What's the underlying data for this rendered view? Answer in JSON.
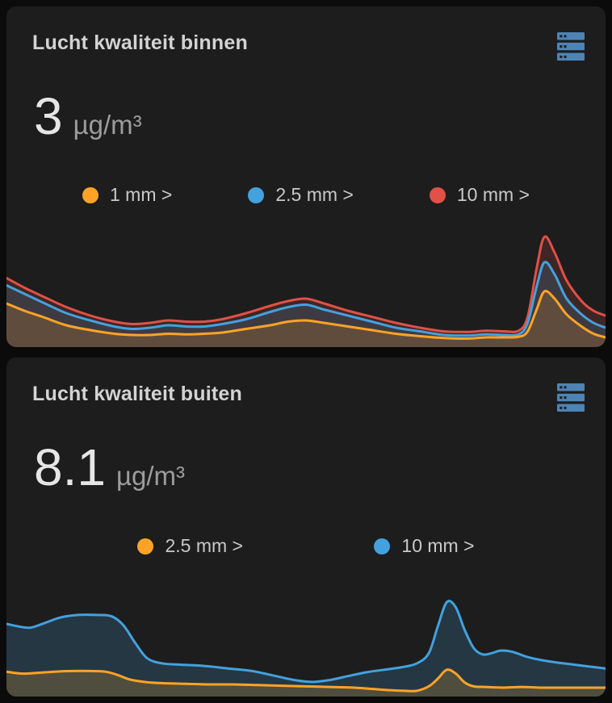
{
  "page": {
    "background": "#0b0b0b",
    "card_background": "#1d1d1d"
  },
  "cards": [
    {
      "title": "Lucht kwaliteit binnen",
      "icon": "server-icon",
      "icon_color": "#4d84b5",
      "value": "3",
      "unit": "µg/m³",
      "legend": [
        {
          "label": "1 mm >",
          "color": "#ffa327"
        },
        {
          "label": "2.5 mm >",
          "color": "#43a1de"
        },
        {
          "label": "10 mm >",
          "color": "#e05146"
        }
      ]
    },
    {
      "title": "Lucht kwaliteit buiten",
      "icon": "server-icon",
      "icon_color": "#4d84b5",
      "value": "8.1",
      "unit": "µg/m³",
      "legend": [
        {
          "label": "2.5 mm >",
          "color": "#ffa327"
        },
        {
          "label": "10 mm >",
          "color": "#43a1de"
        }
      ]
    }
  ],
  "chart_data": [
    {
      "type": "area",
      "title": "Lucht kwaliteit binnen",
      "xlabel": "",
      "ylabel": "",
      "x_unit": "percent of chart width (time axis, unlabeled)",
      "y_unit": "percent of chart height (no axis labels shown)",
      "ylim": [
        0,
        100
      ],
      "grid": false,
      "legend_position": "top",
      "legend_entries": [
        "1 mm >",
        "2.5 mm >",
        "10 mm >"
      ],
      "series": [
        {
          "name": "10 mm",
          "color": "#e05146",
          "fill_opacity": 0.17,
          "values": [
            [
              0,
              57
            ],
            [
              3,
              49
            ],
            [
              6,
              42
            ],
            [
              10,
              33
            ],
            [
              14,
              26
            ],
            [
              18,
              21
            ],
            [
              21,
              19
            ],
            [
              24,
              20
            ],
            [
              27,
              22
            ],
            [
              30,
              21
            ],
            [
              33,
              21
            ],
            [
              36,
              23
            ],
            [
              40,
              28
            ],
            [
              44,
              34
            ],
            [
              47,
              38
            ],
            [
              50,
              40
            ],
            [
              53,
              36
            ],
            [
              57,
              30
            ],
            [
              61,
              25
            ],
            [
              65,
              20
            ],
            [
              69,
              16
            ],
            [
              73,
              13
            ],
            [
              77,
              12.5
            ],
            [
              80,
              13.5
            ],
            [
              83,
              13
            ],
            [
              85.5,
              13.5
            ],
            [
              87,
              25
            ],
            [
              88.5,
              65
            ],
            [
              89.8,
              91
            ],
            [
              91.5,
              78
            ],
            [
              93.5,
              55
            ],
            [
              96,
              38
            ],
            [
              98,
              30
            ],
            [
              100,
              26
            ]
          ]
        },
        {
          "name": "2.5 mm",
          "color": "#43a1de",
          "fill_opacity": 0.17,
          "values": [
            [
              0,
              51
            ],
            [
              3,
              44
            ],
            [
              6,
              37
            ],
            [
              10,
              28
            ],
            [
              14,
              22
            ],
            [
              18,
              17
            ],
            [
              21,
              15
            ],
            [
              24,
              16
            ],
            [
              27,
              18
            ],
            [
              30,
              17
            ],
            [
              33,
              17
            ],
            [
              36,
              19
            ],
            [
              40,
              23
            ],
            [
              44,
              29
            ],
            [
              47,
              33
            ],
            [
              50,
              35
            ],
            [
              53,
              31
            ],
            [
              57,
              26
            ],
            [
              61,
              21
            ],
            [
              65,
              16
            ],
            [
              69,
              13
            ],
            [
              73,
              10
            ],
            [
              77,
              9.5
            ],
            [
              80,
              10.5
            ],
            [
              83,
              10
            ],
            [
              85.5,
              10.5
            ],
            [
              87,
              20
            ],
            [
              88.5,
              50
            ],
            [
              89.8,
              70
            ],
            [
              91.5,
              60
            ],
            [
              93.5,
              40
            ],
            [
              96,
              27
            ],
            [
              98,
              20
            ],
            [
              100,
              16
            ]
          ]
        },
        {
          "name": "1 mm",
          "color": "#ffa327",
          "fill_opacity": 0.18,
          "values": [
            [
              0,
              36
            ],
            [
              3,
              30
            ],
            [
              6,
              25
            ],
            [
              10,
              18
            ],
            [
              14,
              14
            ],
            [
              18,
              11
            ],
            [
              21,
              10
            ],
            [
              24,
              10
            ],
            [
              27,
              11
            ],
            [
              30,
              10.5
            ],
            [
              33,
              11
            ],
            [
              36,
              12
            ],
            [
              40,
              15
            ],
            [
              44,
              18
            ],
            [
              47,
              21
            ],
            [
              50,
              22
            ],
            [
              53,
              20
            ],
            [
              57,
              17
            ],
            [
              61,
              14
            ],
            [
              65,
              11
            ],
            [
              69,
              9
            ],
            [
              73,
              7.5
            ],
            [
              77,
              7
            ],
            [
              80,
              8
            ],
            [
              83,
              8
            ],
            [
              85.5,
              8.5
            ],
            [
              87,
              13
            ],
            [
              88.5,
              31
            ],
            [
              89.8,
              46
            ],
            [
              91.5,
              40
            ],
            [
              93.5,
              27
            ],
            [
              96,
              17
            ],
            [
              98,
              11
            ],
            [
              100,
              8
            ]
          ]
        }
      ]
    },
    {
      "type": "area",
      "title": "Lucht kwaliteit buiten",
      "xlabel": "",
      "ylabel": "",
      "x_unit": "percent of chart width (time axis, unlabeled)",
      "y_unit": "percent of chart height (no axis labels shown)",
      "ylim": [
        0,
        100
      ],
      "grid": false,
      "legend_position": "top",
      "legend_entries": [
        "2.5 mm >",
        "10 mm >"
      ],
      "series": [
        {
          "name": "10 mm",
          "color": "#43a1de",
          "fill_opacity": 0.2,
          "values": [
            [
              0,
              57
            ],
            [
              2,
              55
            ],
            [
              4,
              54
            ],
            [
              6,
              57
            ],
            [
              9,
              62
            ],
            [
              12,
              64
            ],
            [
              15,
              64
            ],
            [
              17.5,
              63
            ],
            [
              19.5,
              56
            ],
            [
              21.5,
              42
            ],
            [
              23.5,
              30
            ],
            [
              26,
              26
            ],
            [
              29,
              25
            ],
            [
              33,
              24
            ],
            [
              37,
              22
            ],
            [
              41,
              20
            ],
            [
              45,
              16
            ],
            [
              48,
              13
            ],
            [
              51,
              11.5
            ],
            [
              54,
              13
            ],
            [
              57,
              16
            ],
            [
              60,
              19
            ],
            [
              63,
              21
            ],
            [
              66,
              23
            ],
            [
              68.5,
              26
            ],
            [
              70.5,
              34
            ],
            [
              72,
              55
            ],
            [
              73.5,
              74
            ],
            [
              75,
              70
            ],
            [
              76.5,
              52
            ],
            [
              78,
              38
            ],
            [
              79.5,
              33
            ],
            [
              81,
              34
            ],
            [
              82.5,
              36
            ],
            [
              84.5,
              35
            ],
            [
              87,
              31
            ],
            [
              90,
              28
            ],
            [
              93,
              26
            ],
            [
              96.5,
              24
            ],
            [
              100,
              22
            ]
          ]
        },
        {
          "name": "2.5 mm",
          "color": "#ffa327",
          "fill_opacity": 0.2,
          "values": [
            [
              0,
              19.5
            ],
            [
              2.5,
              18
            ],
            [
              5,
              18.5
            ],
            [
              8,
              19.5
            ],
            [
              11,
              20
            ],
            [
              14,
              20
            ],
            [
              16.5,
              19.5
            ],
            [
              18.5,
              17
            ],
            [
              20.5,
              13.5
            ],
            [
              23,
              11.5
            ],
            [
              26,
              10.5
            ],
            [
              30,
              10
            ],
            [
              34,
              9.5
            ],
            [
              38,
              9.5
            ],
            [
              42,
              9
            ],
            [
              46,
              8.5
            ],
            [
              50,
              8
            ],
            [
              54,
              7.5
            ],
            [
              58,
              7
            ],
            [
              61,
              6
            ],
            [
              64,
              5
            ],
            [
              66.5,
              4.5
            ],
            [
              68.5,
              4.5
            ],
            [
              70.5,
              8
            ],
            [
              72,
              14
            ],
            [
              73.5,
              21
            ],
            [
              75,
              18
            ],
            [
              76.5,
              11
            ],
            [
              78,
              8
            ],
            [
              80,
              7.5
            ],
            [
              83,
              7
            ],
            [
              86,
              7.5
            ],
            [
              89,
              7
            ],
            [
              92,
              7
            ],
            [
              96,
              7
            ],
            [
              100,
              7
            ]
          ]
        }
      ]
    }
  ]
}
